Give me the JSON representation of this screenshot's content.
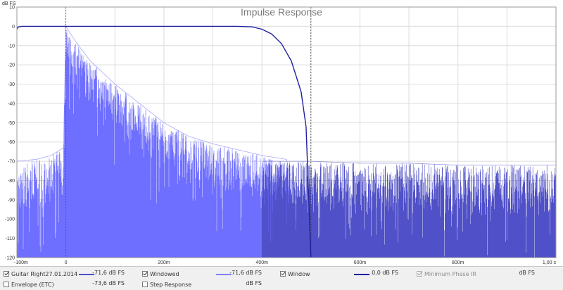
{
  "chart_data": {
    "type": "line",
    "title": "Impulse Response",
    "ylabel": "dB FS",
    "xlim": [
      -0.1,
      1.0
    ],
    "ylim": [
      -120,
      10
    ],
    "x_ticks": [
      {
        "v": -0.1,
        "label": "-100m"
      },
      {
        "v": 0.0,
        "label": "0"
      },
      {
        "v": 0.2,
        "label": "200m"
      },
      {
        "v": 0.4,
        "label": "400m"
      },
      {
        "v": 0.6,
        "label": "600m"
      },
      {
        "v": 0.8,
        "label": "800m"
      },
      {
        "v": 1.0,
        "label": "1,00 s"
      }
    ],
    "y_ticks": [
      {
        "v": 10,
        "label": "10"
      },
      {
        "v": 0,
        "label": "0"
      },
      {
        "v": -10,
        "label": "-10"
      },
      {
        "v": -20,
        "label": "-20"
      },
      {
        "v": -30,
        "label": "-30"
      },
      {
        "v": -40,
        "label": "-40"
      },
      {
        "v": -50,
        "label": "-50"
      },
      {
        "v": -60,
        "label": "-60"
      },
      {
        "v": -70,
        "label": "-70"
      },
      {
        "v": -80,
        "label": "-80"
      },
      {
        "v": -90,
        "label": "-90"
      },
      {
        "v": -100,
        "label": "-100"
      },
      {
        "v": -110,
        "label": "-110"
      },
      {
        "v": -120,
        "label": "-120"
      }
    ],
    "grid": true,
    "markers": [
      {
        "x": 0.0,
        "color": "#cc2222"
      },
      {
        "x": 0.5,
        "color": "#333333"
      }
    ],
    "series": [
      {
        "name": "Windowed",
        "kind": "impulse-envelope",
        "color": "#6e6eff",
        "x": [
          -0.1,
          -0.06,
          -0.03,
          -0.005,
          0.0,
          0.02,
          0.05,
          0.1,
          0.15,
          0.2,
          0.25,
          0.3,
          0.35,
          0.4,
          0.45,
          0.5
        ],
        "y": [
          -70,
          -69,
          -67,
          -63,
          0,
          -8,
          -18,
          -30,
          -40,
          -50,
          -57,
          -61,
          -64,
          -67,
          -69,
          -120
        ]
      },
      {
        "name": "Guitar Right27.01.2014",
        "kind": "impulse-envelope",
        "color": "#5050c8",
        "x": [
          0.4,
          0.5,
          0.6,
          0.7,
          0.8,
          0.9,
          1.0
        ],
        "y": [
          -70,
          -70,
          -71,
          -71,
          -72,
          -72,
          -72
        ]
      },
      {
        "name": "Window",
        "kind": "line",
        "color": "#2020a0",
        "x": [
          -0.1,
          -0.097,
          -0.09,
          0.0,
          0.3,
          0.35,
          0.38,
          0.4,
          0.42,
          0.44,
          0.46,
          0.48,
          0.49,
          0.5
        ],
        "y": [
          -1.5,
          -0.3,
          0,
          0,
          0,
          0,
          -0.3,
          -1.5,
          -4,
          -9,
          -18,
          -34,
          -52,
          -120
        ]
      }
    ]
  },
  "legend": {
    "row1": [
      {
        "label": "Guitar Right27.01.2014",
        "checked": true,
        "disabled": false,
        "value": "-71,6 dB FS",
        "color": "#5050c8"
      },
      {
        "label": "Windowed",
        "checked": true,
        "disabled": false,
        "value": "-71,6 dB FS",
        "color": "#8080ff"
      },
      {
        "label": "Window",
        "checked": true,
        "disabled": false,
        "value": "0,0 dB FS",
        "color": "#2020a0"
      },
      {
        "label": "Minimum Phase IR",
        "checked": true,
        "disabled": true,
        "value": "dB FS",
        "color": ""
      }
    ],
    "row2": [
      {
        "label": "Envelope (ETC)",
        "checked": false,
        "disabled": false,
        "value": "-73,6 dB FS"
      },
      {
        "label": "Step Response",
        "checked": false,
        "disabled": false,
        "value": "dB FS"
      }
    ]
  }
}
